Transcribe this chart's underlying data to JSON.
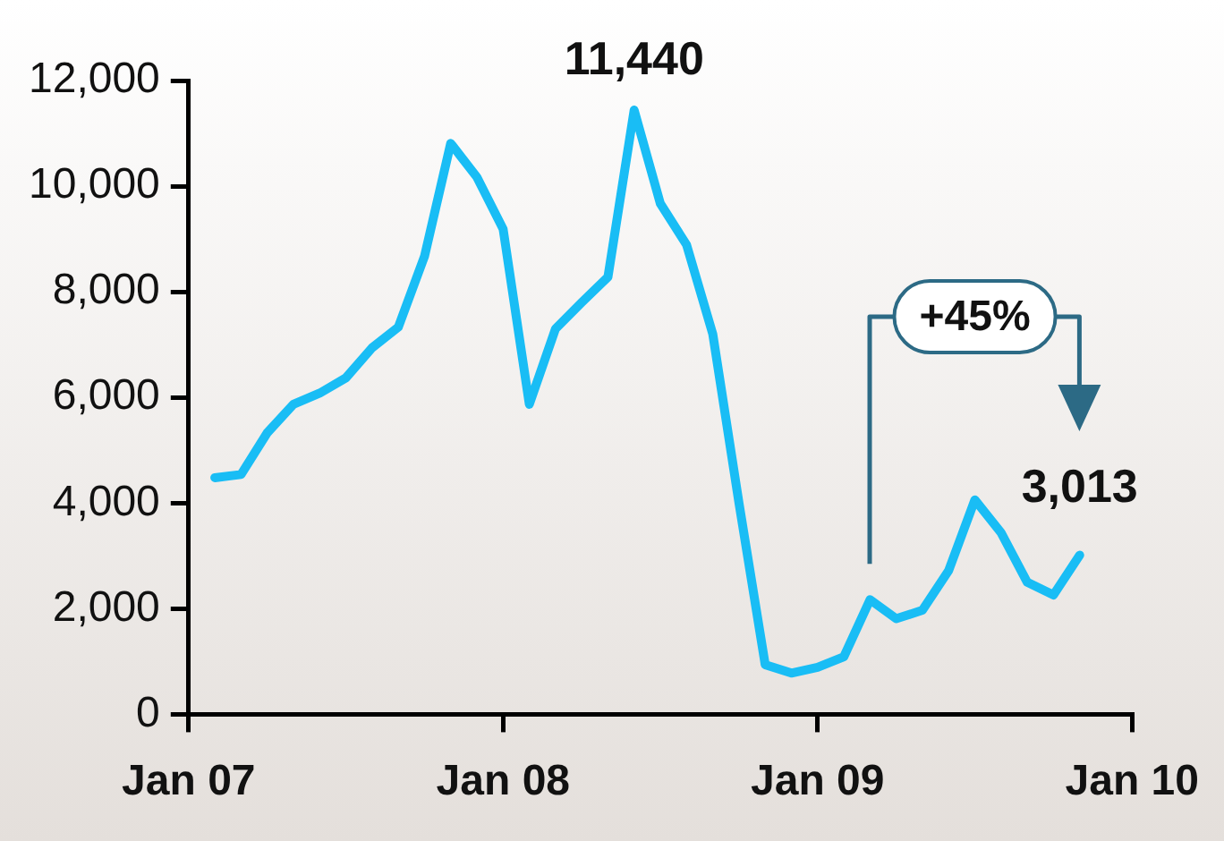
{
  "chart_data": {
    "type": "line",
    "x": [
      "2007-02",
      "2007-03",
      "2007-04",
      "2007-05",
      "2007-06",
      "2007-07",
      "2007-08",
      "2007-09",
      "2007-10",
      "2007-11",
      "2007-12",
      "2008-01",
      "2008-02",
      "2008-03",
      "2008-04",
      "2008-05",
      "2008-06",
      "2008-07",
      "2008-08",
      "2008-09",
      "2008-10",
      "2008-11",
      "2008-12",
      "2009-01",
      "2009-02",
      "2009-03",
      "2009-04",
      "2009-05",
      "2009-06",
      "2009-07",
      "2009-08",
      "2009-09",
      "2009-10",
      "2009-11"
    ],
    "series": [
      {
        "color": "#19bdf5",
        "values": [
          4480,
          4540,
          5330,
          5870,
          6080,
          6370,
          6940,
          7330,
          8670,
          10810,
          10170,
          9190,
          5870,
          7300,
          7800,
          8280,
          11440,
          9670,
          8890,
          7200,
          4000,
          940,
          780,
          890,
          1090,
          2170,
          1810,
          1970,
          2720,
          4060,
          3440,
          2500,
          2260,
          3013
        ],
        "value_labels": [
          null,
          null,
          null,
          null,
          null,
          null,
          null,
          null,
          null,
          null,
          null,
          null,
          null,
          null,
          null,
          null,
          "11,440",
          null,
          null,
          null,
          null,
          null,
          null,
          null,
          null,
          null,
          null,
          null,
          null,
          null,
          null,
          null,
          null,
          "3,013"
        ]
      }
    ],
    "xlim": [
      "2007-01",
      "2010-01"
    ],
    "xticks": [
      {
        "value": "2007-01",
        "label": "Jan 07"
      },
      {
        "value": "2008-01",
        "label": "Jan 08"
      },
      {
        "value": "2009-01",
        "label": "Jan 09"
      },
      {
        "value": "2010-01",
        "label": "Jan 10"
      }
    ],
    "ylim": [
      0,
      12000
    ],
    "yticks": [
      {
        "value": 0,
        "label": "0"
      },
      {
        "value": 2000,
        "label": "2,000"
      },
      {
        "value": 4000,
        "label": "4,000"
      },
      {
        "value": 6000,
        "label": "6,000"
      },
      {
        "value": 8000,
        "label": "8,000"
      },
      {
        "value": 10000,
        "label": "10,000"
      },
      {
        "value": 12000,
        "label": "12,000"
      }
    ],
    "annotations": [
      "+45%"
    ],
    "grid": false,
    "legend": false,
    "marker": "none",
    "line_style": "solid"
  }
}
